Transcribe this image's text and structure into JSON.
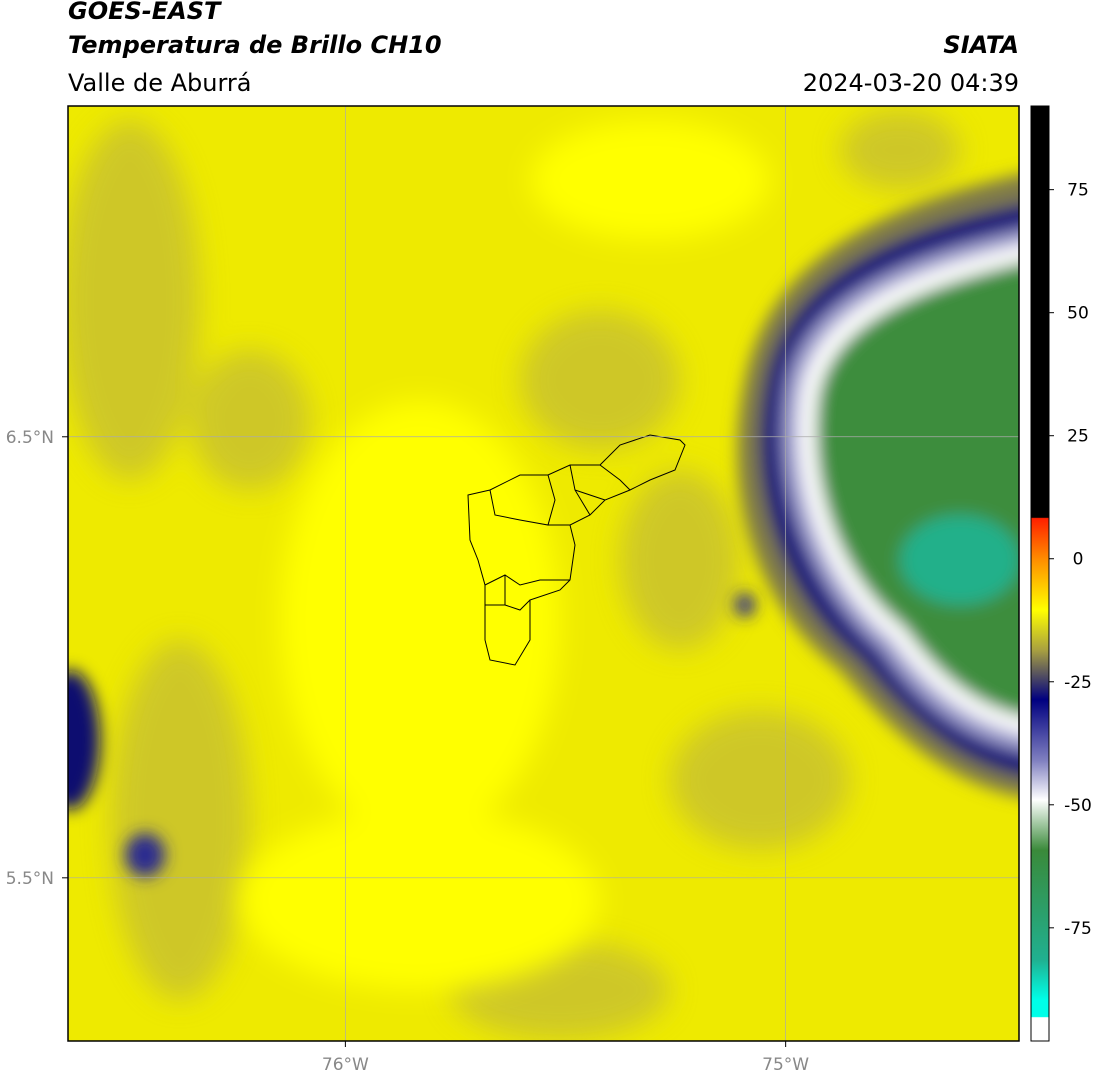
{
  "header": {
    "title": "GOES-EAST",
    "subtitle": "Temperatura de Brillo CH10",
    "region": "Valle de Aburrá",
    "source": "SIATA",
    "timestamp": "2024-03-20 04:39"
  },
  "map": {
    "xlim": [
      -76.63,
      -74.47
    ],
    "ylim": [
      5.13,
      7.25
    ],
    "xticks": [
      {
        "value": -76,
        "label": "76°W"
      },
      {
        "value": -75,
        "label": "75°W"
      }
    ],
    "yticks": [
      {
        "value": 6.5,
        "label": "6.5°N"
      },
      {
        "value": 5.5,
        "label": "5.5°N"
      }
    ],
    "grid": true
  },
  "colorbar": {
    "lim": [
      -98,
      92
    ],
    "ticks": [
      75,
      50,
      25,
      0,
      -25,
      -50,
      -75
    ]
  }
}
